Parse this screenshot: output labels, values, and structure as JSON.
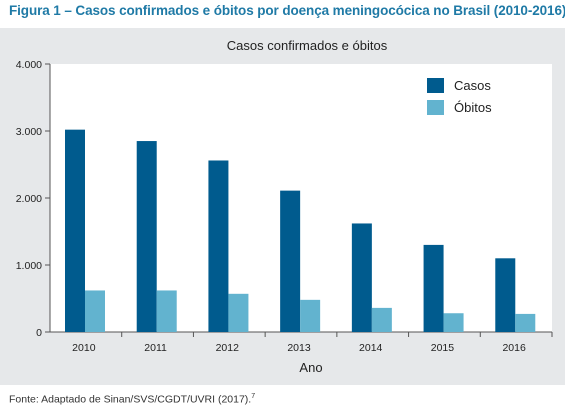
{
  "figure": {
    "title": "Figura 1 – Casos confirmados e óbitos por doença meningocócica no Brasil (2010-2016)",
    "source": "Fonte: Adaptado de Sinan/SVS/CGDT/UVRI (2017).",
    "source_ref": "7"
  },
  "chart_data": {
    "type": "bar",
    "title": "Casos confirmados e óbitos",
    "xlabel": "Ano",
    "ylabel": "",
    "categories": [
      "2010",
      "2011",
      "2012",
      "2013",
      "2014",
      "2015",
      "2016"
    ],
    "series": [
      {
        "name": "Casos",
        "color": "#005b8e",
        "values": [
          3020,
          2850,
          2560,
          2110,
          1620,
          1300,
          1100
        ]
      },
      {
        "name": "Óbitos",
        "color": "#62b3cf",
        "values": [
          620,
          620,
          570,
          480,
          360,
          280,
          270
        ]
      }
    ],
    "ylim": [
      0,
      4000
    ],
    "yticks": [
      0,
      1000,
      2000,
      3000,
      4000
    ],
    "ytick_labels": [
      "0",
      "1.000",
      "2.000",
      "3.000",
      "4.000"
    ],
    "grid": false,
    "legend_position": "top-right"
  }
}
